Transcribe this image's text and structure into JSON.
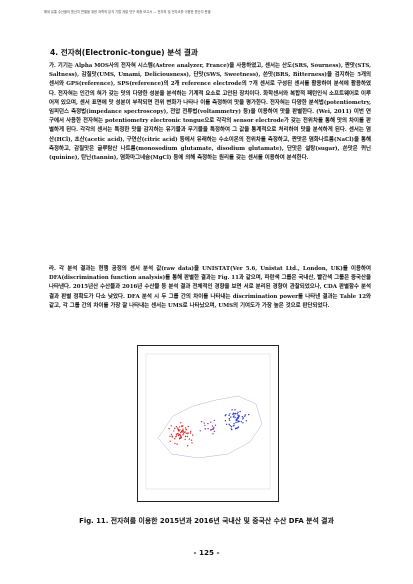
{
  "header": {
    "running_text": "해외 유통 수산물의 원산지 판별을 위한 과학적 분석 기법 개발 연구 최종 보고서 — 전자혀 및 전자코를 이용한 원산지 판별"
  },
  "section": {
    "title": "4. 전자혀(Electronic-tongue) 분석 결과"
  },
  "paragraphs": [
    "가. 기기는 Alpha MOS사의 전자혀 시스템(Astree analyzer, France)을 사용하였고, 센서는 산도(SRS, Sourness), 짠맛(STS, Saltness), 감칠맛(UMS, Umami, Deliciousness), 단맛(SWS, Sweetness), 쓴맛(BRS, Bitterness)을 검지하는 5개의 센서와 GPS(reference), SPS(reference)의 2개 reference electrode의 7개 센서로 구성된 센서를 활용하여 분석에 활용하였다. 전자혀는 인간의 혀가 갖는 맛의 다양한 성분을 분석하는 기계적 요소로 고안된 장치이다. 화학센서와 복합적 패턴인식 소프트웨어로 이루어져 있으며, 센서 표면에 맛 성분이 부착되면 전위 변화가 나타나 이를 측정하여 맛을 평가한다. 전자혀는 다양한 분석법(potentiometry, 임피던스 측정법(impedance spectroscopy), 전압 전류법(voltammetry) 등)을 이용하여 맛을 판별한다. (Wei, 2011) 이번 연구에서 사용한 전자혀는 potentiometry electronic tongue으로 각각의 sensor electrode가 갖는 전위차를 통해 맛의 차이를 판별하게 된다. 각각의 센서는 특정한 맛을 감지하는 유기물과 무기물을 특정하여 그 값을 통계적으로 처리하여 맛을 분석하게 된다. 센서는 염산(HCl), 초산(acetic acid), 구연산(citric acid) 등에서 유래하는 수소이온의 전위차를 측정하고, 짠맛은 염화나트륨(NaCl)을 통해 측정하고, 감칠맛은 글루탐산 나트륨(monosodium glutamate, disodium glutamate), 단맛은 설탕(sugar), 쓴맛은 퀴닌(quinine), 탄닌(tannin), 염화마그네슘(MgCl) 등에 의해 측정하는 원리를 갖는 센서를 이용하여 분석한다.",
    "라. 각 분석 결과는 현행 공정의 센서 분석 값(raw data)을 UNISTAT(Ver 5.6, Unistat Ltd., London, UK)를 이용하여 DFA(discrimination function analysis)를 통해 판별한 결과는 Fig. 11과 같으며, 파란색 그룹은 국내산, 빨간색 그룹은 중국산을 나타낸다. 2015년산 수산물과 2016년 수산물 등 분석 결과 전체적인 경향을 보면 서로 분리된 경향이 관찰되었으나, CDA 판별함수 분석 결과 판별 정확도가 다소 낮았다. DFA 분석 시 두 그룹 간의 차이를 나타내는 discrimination power를 나타낸 결과는 Table 12와 같고, 각 그룹 간의 차이를 가장 잘 나타내는 센서는 UMS로 나타났으며, UMS의 기여도가 가장 높은 것으로 판단되었다."
  ],
  "figure": {
    "caption": "Fig. 11. 전자혀를 이용한 2015년과 2016년 국내산 및 중국산 수산 DFA 분석 결과",
    "colors": {
      "domestic": "#2b3bd6",
      "china": "#d62b2b",
      "mixed": "#8a3aa5"
    }
  },
  "page": {
    "number": "- 125 -"
  }
}
